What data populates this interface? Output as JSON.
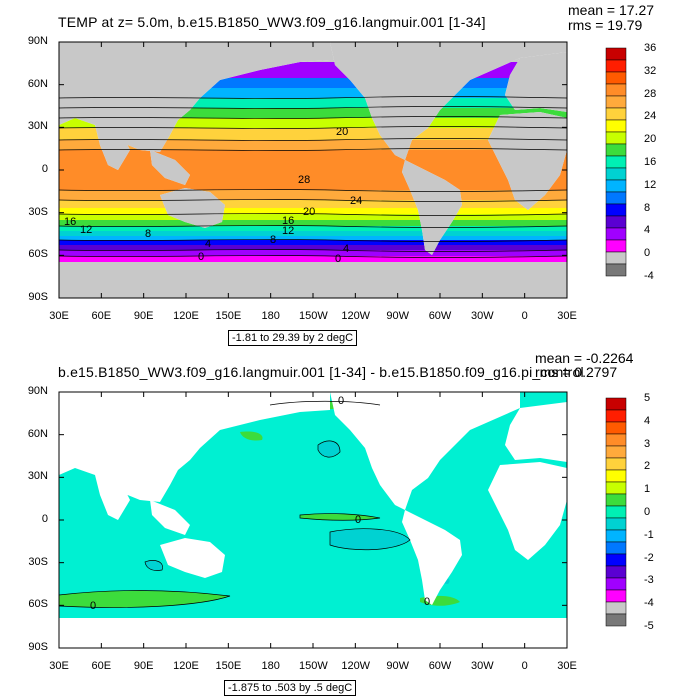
{
  "panels": [
    {
      "title": "TEMP at z=     5.0m, b.e15.B1850_WW3.f09_g16.langmuir.001 [1-34]",
      "stats": {
        "mean": "mean = 17.27",
        "rms": "rms = 19.79"
      },
      "range_label": "-1.81 to 29.39 by 2 degC",
      "colorbar_labels": [
        "36",
        "32",
        "28",
        "24",
        "20",
        "16",
        "12",
        "8",
        "4",
        "0",
        "-4"
      ],
      "colorbar_colors": [
        "#c80000",
        "#ff1e00",
        "#ff5a00",
        "#ff8c28",
        "#ffaa3c",
        "#ffd23c",
        "#ffff00",
        "#c8ff00",
        "#3cdc3c",
        "#00f0b4",
        "#00d2d2",
        "#00b4ff",
        "#0078ff",
        "#0000ff",
        "#5a00d2",
        "#a000ff",
        "#ff00ff",
        "#c8c8c8",
        "#787878"
      ],
      "contour_labels": [
        "20",
        "24",
        "28",
        "16",
        "12",
        "8",
        "4",
        "0",
        "20",
        "16",
        "12",
        "8",
        "4",
        "0"
      ]
    },
    {
      "title": "b.e15.B1850_WW3.f09_g16.langmuir.001 [1-34] - b.e15.B1850.f09_g16.pi_control",
      "stats": {
        "mean": "mean = -0.2264",
        "rms": "rms = 0.2797"
      },
      "range_label": "-1.875 to .503 by .5 degC",
      "colorbar_labels": [
        "5",
        "4",
        "3",
        "2",
        "1",
        "0",
        "-1",
        "-2",
        "-3",
        "-4",
        "-5"
      ],
      "colorbar_colors": [
        "#c80000",
        "#ff1e00",
        "#ff5a00",
        "#ff8c28",
        "#ffaa3c",
        "#ffd23c",
        "#ffff00",
        "#c8ff00",
        "#3cdc3c",
        "#00f0b4",
        "#00d2d2",
        "#00b4ff",
        "#0078ff",
        "#0000ff",
        "#5a00d2",
        "#a000ff",
        "#ff00ff",
        "#c8c8c8",
        "#787878"
      ],
      "contour_labels": [
        "0",
        "0",
        "0",
        "0"
      ]
    }
  ],
  "lat_ticks": [
    "90N",
    "60N",
    "30N",
    "0",
    "30S",
    "60S",
    "90S"
  ],
  "lon_ticks": [
    "30E",
    "60E",
    "90E",
    "120E",
    "150E",
    "180",
    "150W",
    "120W",
    "90W",
    "60W",
    "30W",
    "0",
    "30E"
  ],
  "colors": {
    "land": "#c8c8c8",
    "diff_ocean": "#00f0d2",
    "diff_pos": "#3cdc3c",
    "diff_neg": "#00d2d2"
  }
}
